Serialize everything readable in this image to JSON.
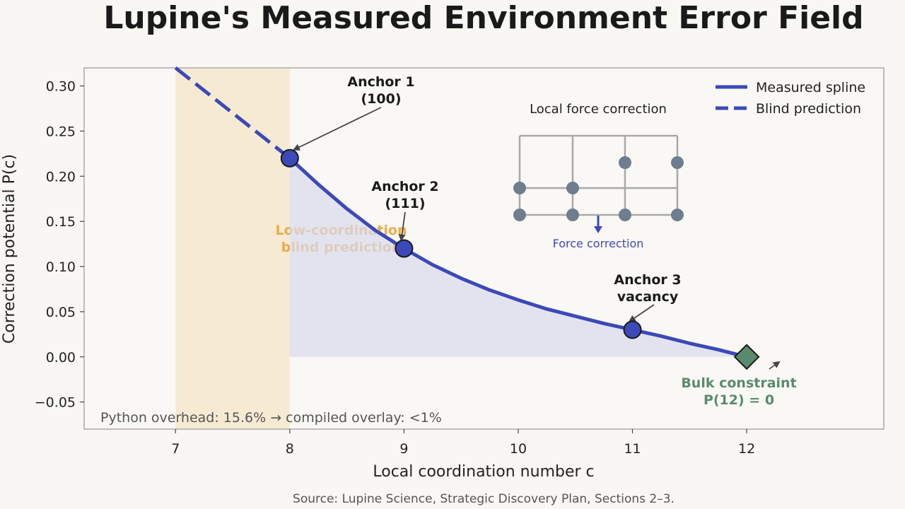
{
  "chart_data": {
    "type": "line",
    "title": "Lupine's Measured Environment Error Field",
    "xlabel": "Local coordination number  c",
    "ylabel": "Correction potential  P(c)",
    "xlim": [
      6.2,
      13.2
    ],
    "ylim": [
      -0.08,
      0.32
    ],
    "x_ticks": [
      7,
      8,
      9,
      10,
      11,
      12
    ],
    "y_ticks": [
      -0.05,
      0.0,
      0.05,
      0.1,
      0.15,
      0.2,
      0.25,
      0.3
    ],
    "x_tick_labels": [
      "7",
      "8",
      "9",
      "10",
      "11",
      "12"
    ],
    "y_tick_labels": [
      "−0.05",
      "0.00",
      "0.05",
      "0.10",
      "0.15",
      "0.20",
      "0.25",
      "0.30"
    ],
    "grid": false,
    "legend_position": "top-right",
    "series": [
      {
        "name": "Measured spline",
        "style": "solid",
        "color": "#3b4ab8",
        "x": [
          8.0,
          8.25,
          8.5,
          8.75,
          9.0,
          9.25,
          9.5,
          9.75,
          10.0,
          10.25,
          10.5,
          10.75,
          11.0,
          11.25,
          11.5,
          11.75,
          12.0
        ],
        "y": [
          0.22,
          0.191,
          0.164,
          0.14,
          0.12,
          0.102,
          0.087,
          0.074,
          0.063,
          0.053,
          0.045,
          0.037,
          0.03,
          0.023,
          0.015,
          0.008,
          0.0
        ]
      },
      {
        "name": "Blind prediction",
        "style": "dashed",
        "color": "#3b4ab8",
        "x": [
          7.0,
          7.5,
          8.0
        ],
        "y": [
          0.32,
          0.27,
          0.22
        ]
      }
    ],
    "anchors": [
      {
        "x": 8,
        "y": 0.22,
        "label": "Anchor 1\n(100)"
      },
      {
        "x": 9,
        "y": 0.12,
        "label": "Anchor 2\n(111)"
      },
      {
        "x": 11,
        "y": 0.03,
        "label": "Anchor 3\nvacancy"
      }
    ],
    "bulk_constraint": {
      "x": 12,
      "y": 0.0,
      "label": "Bulk constraint\nP(12) = 0",
      "color": "#5a8a6e"
    },
    "shaded_band": {
      "x_range": [
        7,
        8
      ],
      "label": "Low-coordination\nblind prediction",
      "color": "#e8ad4a"
    },
    "footnote": "Python overhead: 15.6%  →  compiled overlay: <1%",
    "inset": {
      "title": "Local force correction",
      "label": "Force correction"
    }
  },
  "source": "Source: Lupine Science, Strategic Discovery Plan, Sections 2–3."
}
